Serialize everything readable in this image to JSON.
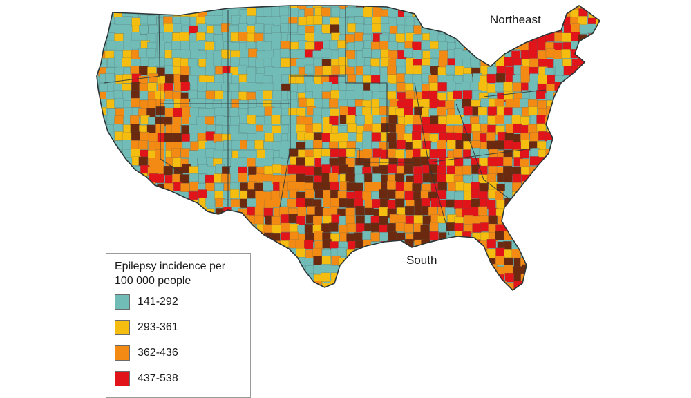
{
  "map": {
    "region_labels": {
      "northeast": "Northeast",
      "south": "South"
    },
    "legend": {
      "title_line1": "Epilepsy incidence per",
      "title_line2": "100 000 people",
      "classes": [
        {
          "label": "141-292",
          "color": "#72bcb8"
        },
        {
          "label": "293-361",
          "color": "#f4bd10"
        },
        {
          "label": "362-436",
          "color": "#f28a14"
        },
        {
          "label": "437-538",
          "color": "#e1141a"
        }
      ],
      "hidden_class_color": "#6b2a10"
    },
    "colors": {
      "background": "#ffffff",
      "boundary": "#4a5558",
      "state_boundary": "#2b3436"
    }
  }
}
